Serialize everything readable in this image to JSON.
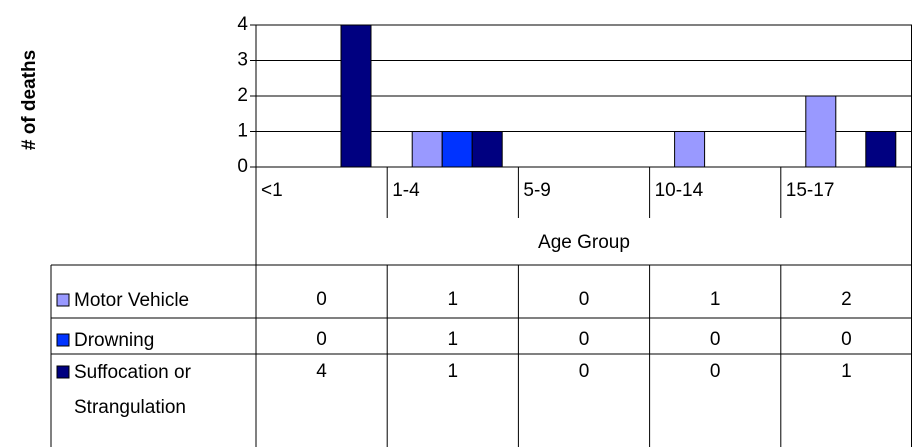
{
  "chart_data": {
    "type": "bar",
    "x_label": "Age Group",
    "y_label": "# of deaths",
    "categories": [
      "<1",
      "1-4",
      "5-9",
      "10-14",
      "15-17"
    ],
    "series": [
      {
        "name": "Motor Vehicle",
        "color": "#9999ff",
        "values": [
          0,
          1,
          0,
          1,
          2
        ]
      },
      {
        "name": "Drowning",
        "color": "#0033ff",
        "values": [
          0,
          1,
          0,
          0,
          0
        ]
      },
      {
        "name": "Suffocation or Strangulation",
        "color": "#000080",
        "values": [
          4,
          1,
          0,
          0,
          1
        ]
      }
    ],
    "ylim": [
      0,
      4
    ],
    "yticks": [
      0,
      1,
      2,
      3,
      4
    ],
    "grid": true
  }
}
